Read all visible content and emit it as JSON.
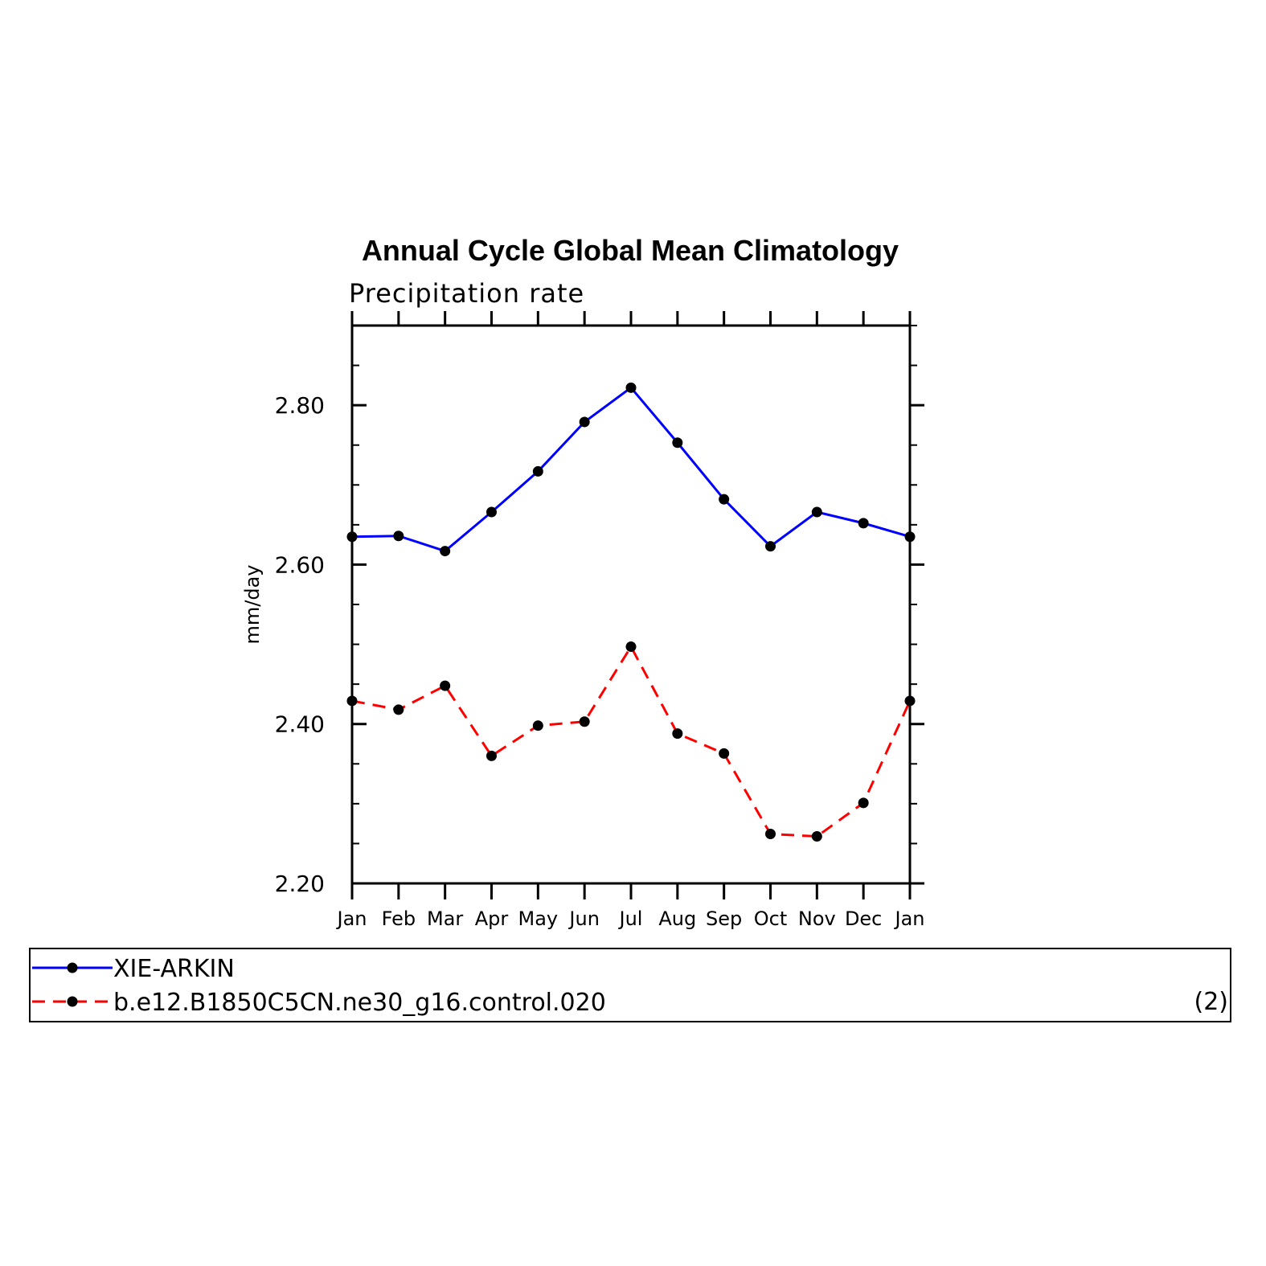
{
  "chart_data": {
    "type": "line",
    "title": "Annual Cycle Global Mean Climatology",
    "subtitle": "Precipitation rate",
    "ylabel": "mm/day",
    "xlabel": "",
    "categories": [
      "Jan",
      "Feb",
      "Mar",
      "Apr",
      "May",
      "Jun",
      "Jul",
      "Aug",
      "Sep",
      "Oct",
      "Nov",
      "Dec",
      "Jan"
    ],
    "ylim": [
      2.2,
      2.9
    ],
    "yticks": [
      2.2,
      2.4,
      2.6,
      2.8
    ],
    "ytick_labels": [
      "2.20",
      "2.40",
      "2.60",
      "2.80"
    ],
    "series": [
      {
        "name": "XIE-ARKIN",
        "color": "#0000ff",
        "style": "solid",
        "marker": "filled-circle",
        "values": [
          2.635,
          2.636,
          2.617,
          2.666,
          2.717,
          2.779,
          2.822,
          2.753,
          2.682,
          2.623,
          2.666,
          2.652,
          2.635
        ]
      },
      {
        "name": "b.e12.B1850C5CN.ne30_g16.control.020",
        "color": "#ff0000",
        "style": "dashed",
        "marker": "filled-circle",
        "values": [
          2.429,
          2.418,
          2.448,
          2.36,
          2.398,
          2.403,
          2.497,
          2.388,
          2.363,
          2.262,
          2.259,
          2.301,
          2.429
        ]
      }
    ],
    "legend_position": "bottom",
    "legend_note": "(2)"
  }
}
